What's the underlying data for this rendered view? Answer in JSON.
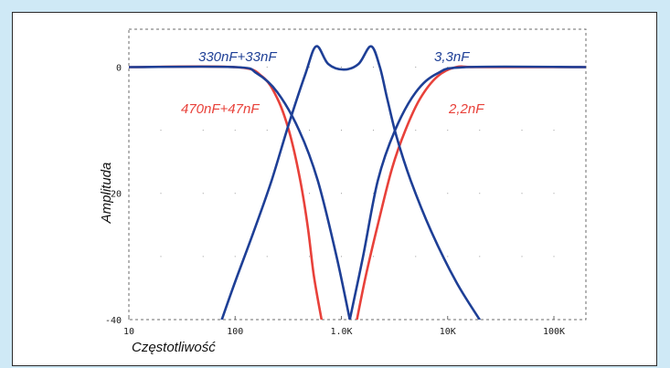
{
  "chart_data": {
    "type": "line",
    "title": "",
    "xlabel": "Częstotliwość",
    "ylabel": "Amplituda",
    "x_scale": "log",
    "xlim": [
      10,
      200000
    ],
    "ylim": [
      -40,
      6
    ],
    "x_ticks": [
      {
        "value": 10,
        "label": "10"
      },
      {
        "value": 100,
        "label": "100"
      },
      {
        "value": 1000,
        "label": "1.0K"
      },
      {
        "value": 10000,
        "label": "10K"
      },
      {
        "value": 100000,
        "label": "100K"
      }
    ],
    "y_ticks": [
      {
        "value": 0,
        "label": "0"
      },
      {
        "value": -20,
        "label": "-20"
      },
      {
        "value": -40,
        "label": "-40"
      }
    ],
    "grid": "dotted",
    "series": [
      {
        "name": "470nF+47nF",
        "color": "#e8413a",
        "x": [
          10,
          100,
          180,
          250,
          320,
          400,
          480,
          550,
          650
        ],
        "y": [
          0,
          0,
          -1.5,
          -5,
          -10,
          -17,
          -25,
          -33,
          -40
        ]
      },
      {
        "name": "2,2nF",
        "color": "#e8413a",
        "x": [
          1400,
          1700,
          2200,
          3000,
          4000,
          5500,
          8000,
          12000,
          20000,
          200000
        ],
        "y": [
          -40,
          -33,
          -25,
          -16,
          -10,
          -5,
          -1.5,
          0,
          0,
          0
        ]
      },
      {
        "name": "330nF+33nF",
        "color": "#1e3f96",
        "x": [
          10,
          100,
          160,
          250,
          400,
          600,
          900,
          1200
        ],
        "y": [
          0,
          0,
          -1,
          -4,
          -10,
          -18,
          -30,
          -40
        ]
      },
      {
        "name": "3,3nF",
        "color": "#1e3f96",
        "x": [
          1200,
          1600,
          2200,
          3200,
          5000,
          8000,
          15000,
          200000
        ],
        "y": [
          -40,
          -30,
          -18,
          -10,
          -4,
          -1,
          0,
          0
        ]
      },
      {
        "name": "",
        "color": "#1e3f96",
        "x": [
          75,
          100,
          150,
          220,
          320,
          460,
          580,
          750,
          1050,
          1450,
          1900,
          2300,
          2700,
          3300,
          4500,
          7000,
          12000,
          20000
        ],
        "y": [
          -40,
          -34,
          -26,
          -18,
          -9,
          -1,
          3.3,
          0.5,
          -0.4,
          0.5,
          3.3,
          0,
          -5,
          -11,
          -18,
          -26,
          -34,
          -40
        ]
      }
    ],
    "annotations": [
      {
        "text": "330nF+33nF",
        "color": "#1e3f96"
      },
      {
        "text": "3,3nF",
        "color": "#1e3f96"
      },
      {
        "text": "470nF+47nF",
        "color": "#e8413a"
      },
      {
        "text": "2,2nF",
        "color": "#e8413a"
      }
    ]
  }
}
